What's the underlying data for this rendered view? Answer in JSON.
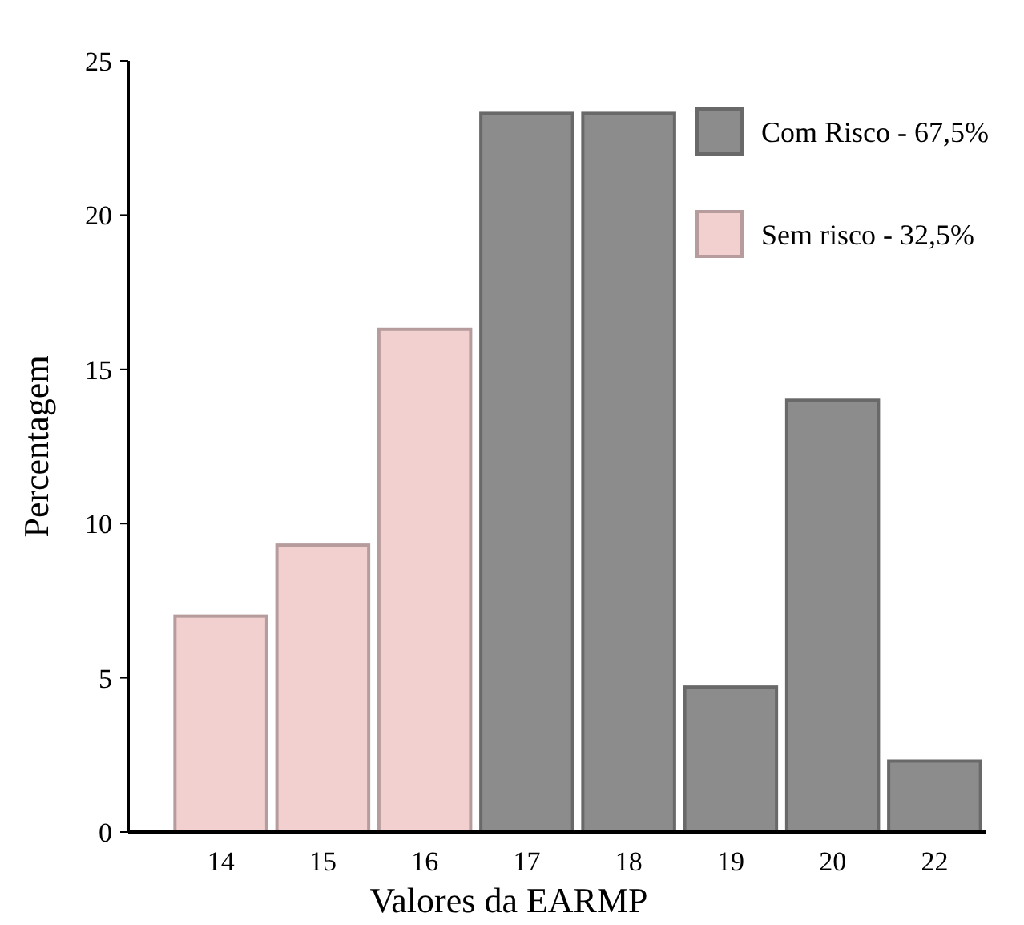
{
  "chart_data": {
    "type": "bar",
    "xlabel": "Valores da EARMP",
    "ylabel": "Percentagem",
    "categories": [
      "14",
      "15",
      "16",
      "17",
      "18",
      "19",
      "20",
      "22"
    ],
    "series": [
      {
        "name": "Com Risco - 67,5%",
        "color": "#8c8c8c",
        "values": [
          null,
          null,
          null,
          23.3,
          23.3,
          4.7,
          14.0,
          2.3
        ]
      },
      {
        "name": "Sem risco  - 32,5%",
        "color": "#f2d0d0",
        "values": [
          7.0,
          9.3,
          16.3,
          null,
          null,
          null,
          null,
          null
        ]
      }
    ],
    "ylim": [
      0,
      25
    ],
    "yticks": [
      0,
      5,
      10,
      15,
      20,
      25
    ],
    "grid": false,
    "legend": "top right"
  }
}
